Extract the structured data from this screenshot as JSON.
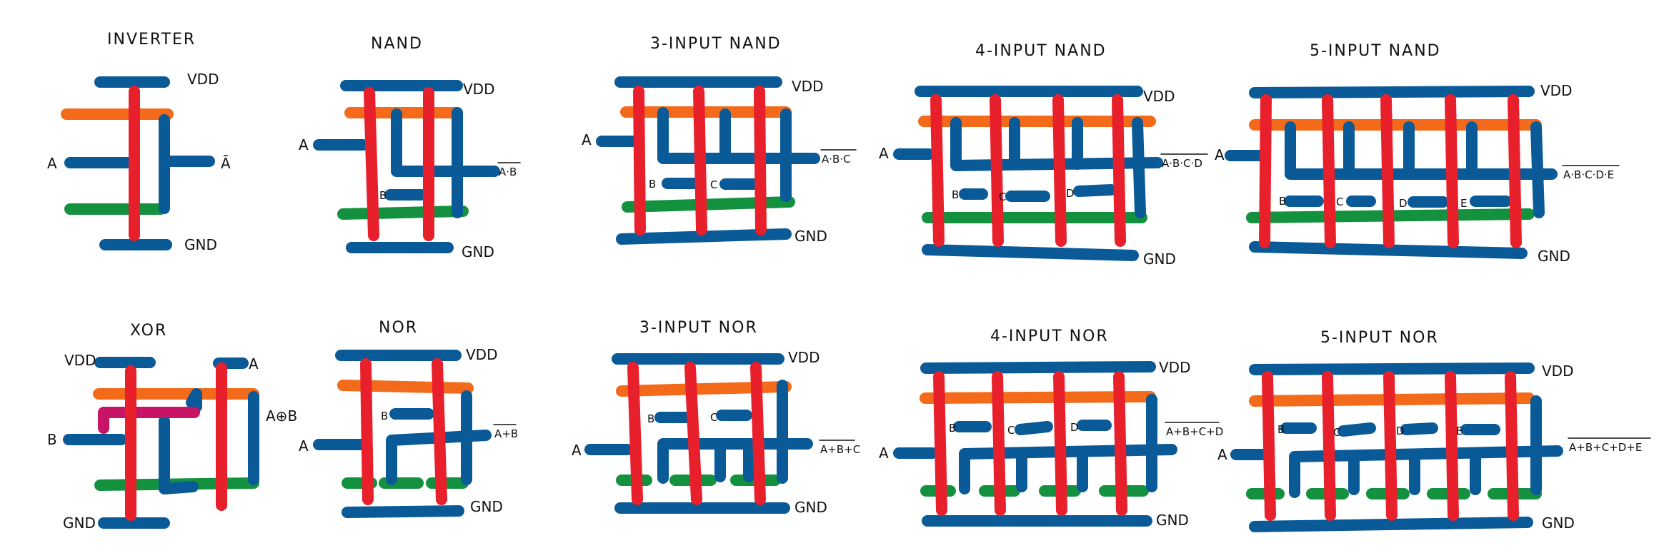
{
  "colors": {
    "metal": "#0a5a98",
    "poly": "#e8202c",
    "pdiff": "#f36a1a",
    "ndiff": "#14913f",
    "via": "#c71465",
    "text": "#111111"
  },
  "cells": {
    "inverter": {
      "title": "INVERTER",
      "vdd": "VDD",
      "gnd": "GND",
      "in_a": "A",
      "out": "Ā"
    },
    "nand2": {
      "title": "NAND",
      "vdd": "VDD",
      "gnd": "GND",
      "in_a": "A",
      "in_b": "B",
      "out": "A·B"
    },
    "nand3": {
      "title": "3-INPUT NAND",
      "vdd": "VDD",
      "gnd": "GND",
      "in_a": "A",
      "in_b": "B",
      "in_c": "C",
      "out": "A·B·C"
    },
    "nand4": {
      "title": "4-INPUT NAND",
      "vdd": "VDD",
      "gnd": "GND",
      "in_a": "A",
      "in_b": "B",
      "in_c": "C",
      "in_d": "D",
      "out": "A·B·C·D"
    },
    "nand5": {
      "title": "5-INPUT NAND",
      "vdd": "VDD",
      "gnd": "GND",
      "in_a": "A",
      "in_b": "B",
      "in_c": "C",
      "in_d": "D",
      "in_e": "E",
      "out": "A·B·C·D·E"
    },
    "xor": {
      "title": "XOR",
      "vdd": "VDD",
      "gnd": "GND",
      "in_a": "A",
      "in_b": "B",
      "out": "A⊕B"
    },
    "nor2": {
      "title": "NOR",
      "vdd": "VDD",
      "gnd": "GND",
      "in_a": "A",
      "in_b": "B",
      "out": "A+B"
    },
    "nor3": {
      "title": "3-INPUT NOR",
      "vdd": "VDD",
      "gnd": "GND",
      "in_a": "A",
      "in_b": "B",
      "in_c": "C",
      "out": "A+B+C"
    },
    "nor4": {
      "title": "4-INPUT NOR",
      "vdd": "VDD",
      "gnd": "GND",
      "in_a": "A",
      "in_b": "B",
      "in_c": "C",
      "in_d": "D",
      "out": "A+B+C+D"
    },
    "nor5": {
      "title": "5-INPUT NOR",
      "vdd": "VDD",
      "gnd": "GND",
      "in_a": "A",
      "in_b": "B",
      "in_c": "C",
      "in_d": "D",
      "in_e": "E",
      "out": "A+B+C+D+E"
    }
  }
}
